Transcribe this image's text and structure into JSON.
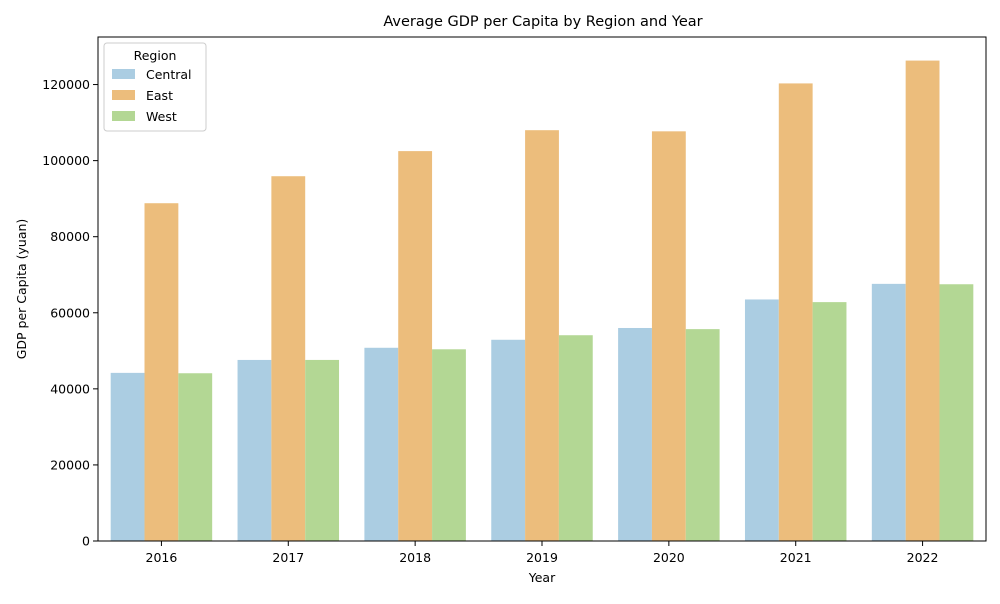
{
  "chart_data": {
    "type": "bar",
    "title": "Average GDP per Capita by Region and Year",
    "xlabel": "Year",
    "ylabel": "GDP per Capita (yuan)",
    "categories": [
      "2016",
      "2017",
      "2018",
      "2019",
      "2020",
      "2021",
      "2022"
    ],
    "series": [
      {
        "name": "Central",
        "color": "#abcde2",
        "values": [
          44200,
          47600,
          50800,
          52900,
          56000,
          63500,
          67600
        ]
      },
      {
        "name": "East",
        "color": "#ecbd7c",
        "values": [
          88800,
          95900,
          102500,
          108000,
          107700,
          120300,
          126300
        ]
      },
      {
        "name": "West",
        "color": "#b3d794",
        "values": [
          44100,
          47600,
          50400,
          54100,
          55700,
          62800,
          67500
        ]
      }
    ],
    "ylim": [
      0,
      132500
    ],
    "yticks": [
      0,
      20000,
      40000,
      60000,
      80000,
      100000,
      120000
    ],
    "grid": false,
    "legend": {
      "title": "Region",
      "placement": "top-left"
    }
  }
}
